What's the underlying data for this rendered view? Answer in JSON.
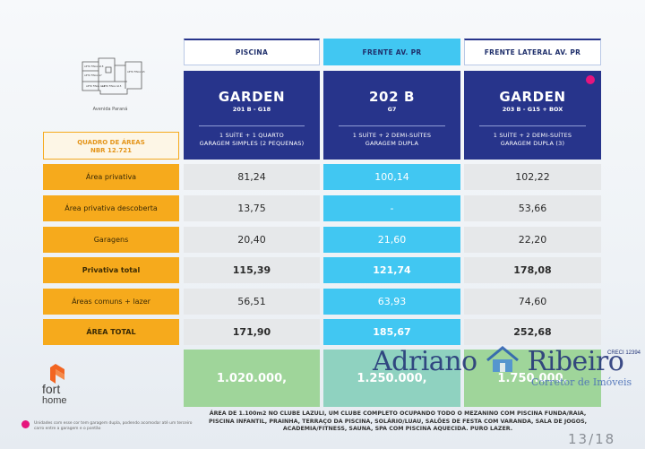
{
  "map": {
    "labels": [
      "APTO FINAL G18",
      "APTO FINAL G7",
      "APTO FINAL G5",
      "APTO FINAL G15",
      "APTO FINAL G16"
    ],
    "street": "Avenida Paraná"
  },
  "quadro": {
    "line1": "QUADRO DE ÁREAS",
    "line2": "NBR 12.721"
  },
  "columns": [
    {
      "header": "PISCINA",
      "name": "GARDEN",
      "sub": "201 B - G18",
      "desc1": "1 SUÍTE + 1 QUARTO",
      "desc2": "GARAGEM SIMPLES (2 PEQUENAS)",
      "price": "1.020.000,"
    },
    {
      "header": "FRENTE AV. PR",
      "name": "202 B",
      "sub": "G7",
      "desc1": "1 SUÍTE + 2 DEMI-SUÍTES",
      "desc2": "GARAGEM DUPLA",
      "price": "1.250.000,"
    },
    {
      "header": "FRENTE LATERAL AV. PR",
      "name": "GARDEN",
      "sub": "203 B - G15 + BOX",
      "desc1": "1 SUÍTE + 2 DEMI-SUÍTES",
      "desc2": "GARAGEM DUPLA (3)",
      "price": "1.750.000,"
    }
  ],
  "rows": [
    {
      "label": "Área privativa",
      "values": [
        "81,24",
        "100,14",
        "102,22"
      ],
      "bold": false
    },
    {
      "label": "Área privativa descoberta",
      "values": [
        "13,75",
        "-",
        "53,66"
      ],
      "bold": false
    },
    {
      "label": "Garagens",
      "values": [
        "20,40",
        "21,60",
        "22,20"
      ],
      "bold": false
    },
    {
      "label": "Privativa total",
      "values": [
        "115,39",
        "121,74",
        "178,08"
      ],
      "bold": true
    },
    {
      "label": "Áreas comuns + lazer",
      "values": [
        "56,51",
        "63,93",
        "74,60"
      ],
      "bold": false
    },
    {
      "label": "ÁREA TOTAL",
      "values": [
        "171,90",
        "185,67",
        "252,68"
      ],
      "bold": true
    }
  ],
  "footer": {
    "text": "ÁREA DE 1.100m2 NO CLUBE LAZULI, UM CLUBE COMPLETO OCUPANDO TODO O MEZANINO COM PISCINA FUNDA/RAIA, PISCINA INFANTIL, PRAINHA, TERRAÇO DA PISCINA, SOLÁRIO/LUAU, SALÕES DE FESTA COM VARANDA, SALA DE JOGOS, ACADEMIA/FITNESS, SAUNA, SPA COM PISCINA AQUECIDA. PURO LAZER.",
    "note": "Unidades com esse cor tem garagem dupla, podendo acomodar até um terceiro carro entre a garagem e o pontão"
  },
  "brand": {
    "line1": "fort",
    "line2": "home"
  },
  "watermark": {
    "name_a": "Adriano",
    "name_b": "Ribeiro",
    "tagline": "Corretor de Imóveis",
    "creci": "CRECI 12394"
  },
  "page_number": "13/18",
  "colors": {
    "navy": "#27348b",
    "cyan": "#41c7f2",
    "orange": "#f6aa1c",
    "green": "#9fd59a",
    "magenta": "#e6157d",
    "logo_orange": "#f26522"
  }
}
